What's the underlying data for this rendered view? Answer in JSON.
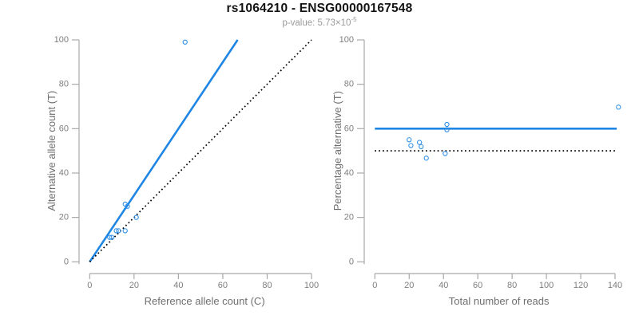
{
  "header": {
    "title": "rs1064210 - ENSG00000167548",
    "subtitle_prefix": "p-value: 5.73×10",
    "subtitle_exponent": "-5"
  },
  "colors": {
    "accent_blue": "#2086E4",
    "point_blue": "#2E8FE8",
    "dotted_black": "#000000",
    "axis_line": "#a9a9a9",
    "tick_text": "#7e7e7e",
    "label_text": "#6f6f6f",
    "title_text": "#141414",
    "subtitle_text": "#9a9a9a"
  },
  "chart_data": [
    {
      "type": "scatter",
      "xlabel": "Reference allele count (C)",
      "ylabel": "Alternative allele count (T)",
      "xlim": [
        0,
        100
      ],
      "ylim": [
        0,
        100
      ],
      "xticks": [
        0,
        20,
        40,
        60,
        80,
        100
      ],
      "yticks": [
        0,
        20,
        40,
        60,
        80,
        100
      ],
      "grid": false,
      "points": [
        [
          9,
          11
        ],
        [
          10,
          11
        ],
        [
          12,
          14
        ],
        [
          13,
          14
        ],
        [
          16,
          14
        ],
        [
          16,
          26
        ],
        [
          17,
          25
        ],
        [
          21,
          20
        ],
        [
          43,
          99
        ]
      ],
      "lines": [
        {
          "name": "fitted-ratio-line",
          "style": "solid",
          "color": "#2086E4",
          "x": [
            0,
            66.7
          ],
          "y": [
            0,
            100
          ]
        },
        {
          "name": "identity-line",
          "style": "dotted",
          "color": "#000000",
          "x": [
            0,
            100
          ],
          "y": [
            0,
            100
          ]
        }
      ]
    },
    {
      "type": "scatter",
      "xlabel": "Total number of reads",
      "ylabel": "Percentage alternative (T)",
      "xlim": [
        0,
        140
      ],
      "ylim": [
        0,
        100
      ],
      "xticks": [
        0,
        20,
        40,
        60,
        80,
        100,
        120,
        140
      ],
      "yticks": [
        0,
        20,
        40,
        60,
        80,
        100
      ],
      "grid": false,
      "points": [
        [
          20,
          55
        ],
        [
          21,
          52.4
        ],
        [
          26,
          53.8
        ],
        [
          27,
          51.9
        ],
        [
          30,
          46.7
        ],
        [
          41,
          48.8
        ],
        [
          42,
          59.5
        ],
        [
          42,
          61.9
        ],
        [
          142,
          69.7
        ]
      ],
      "lines": [
        {
          "name": "mean-percentage-line",
          "style": "solid",
          "color": "#2086E4",
          "x": [
            0,
            141
          ],
          "y": [
            60,
            60
          ]
        },
        {
          "name": "null-50-percent-line",
          "style": "dotted",
          "color": "#000000",
          "x": [
            0,
            140
          ],
          "y": [
            50,
            50
          ]
        }
      ]
    }
  ]
}
